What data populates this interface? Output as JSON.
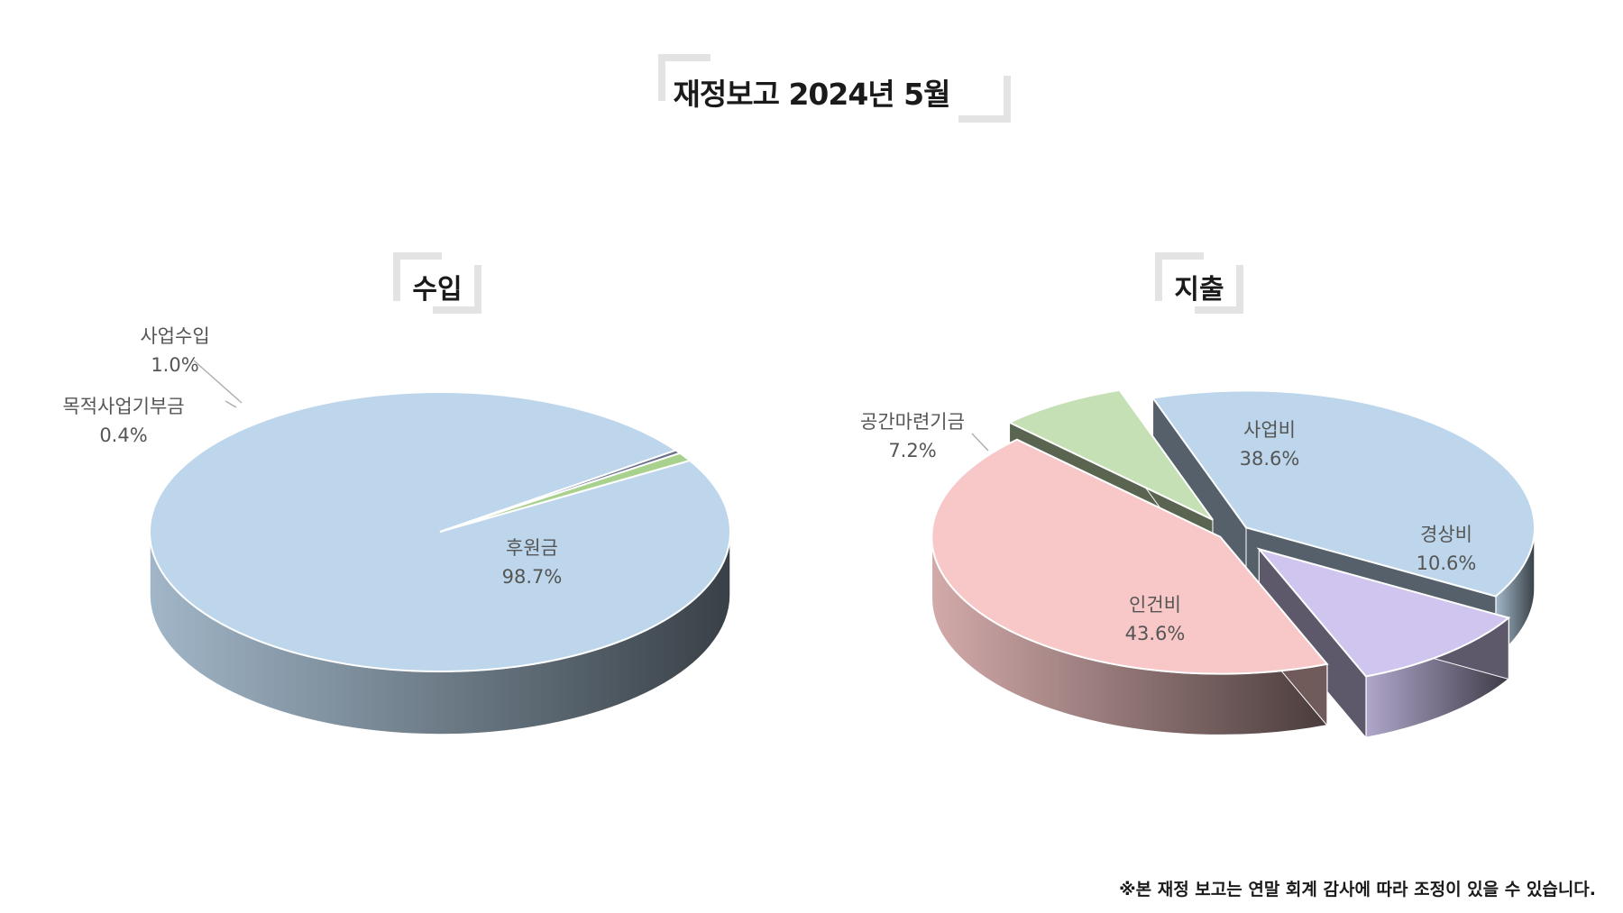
{
  "title": "재정보고 2024년 5월",
  "footnote": "※본 재정 보고는 연말 회계 감사에 따라 조정이 있을 수 있습니다.",
  "chart_data": [
    {
      "type": "pie",
      "title": "수입",
      "slices": [
        {
          "label": "후원금",
          "value": 98.7,
          "display": "98.7%",
          "color": "#bdd6eb"
        },
        {
          "label": "목적사업기부금",
          "value": 0.4,
          "display": "0.4%",
          "color": "#6a6f8a"
        },
        {
          "label": "사업수입",
          "value": 1.0,
          "display": "1.0%",
          "color": "#a9d18e"
        }
      ]
    },
    {
      "type": "pie",
      "title": "지출",
      "slices": [
        {
          "label": "사업비",
          "value": 38.6,
          "display": "38.6%",
          "color": "#bdd6eb"
        },
        {
          "label": "경상비",
          "value": 10.6,
          "display": "10.6%",
          "color": "#cfc5ee"
        },
        {
          "label": "인건비",
          "value": 43.6,
          "display": "43.6%",
          "color": "#f8c8c8"
        },
        {
          "label": "공간마련기금",
          "value": 7.2,
          "display": "7.2%",
          "color": "#c5e0b4"
        }
      ]
    }
  ]
}
